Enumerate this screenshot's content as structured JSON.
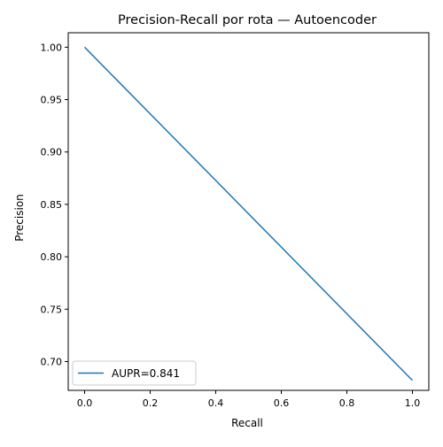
{
  "chart_data": {
    "type": "line",
    "title": "Precision-Recall por rota — Autoencoder",
    "xlabel": "Recall",
    "ylabel": "Precision",
    "xlim": [
      -0.05,
      1.05
    ],
    "ylim": [
      0.6725,
      1.0138
    ],
    "x_ticks": [
      0.0,
      0.2,
      0.4,
      0.6,
      0.8,
      1.0
    ],
    "x_tick_labels": [
      "0.0",
      "0.2",
      "0.4",
      "0.6",
      "0.8",
      "1.0"
    ],
    "y_ticks": [
      0.7,
      0.75,
      0.8,
      0.85,
      0.9,
      0.95,
      1.0
    ],
    "y_tick_labels": [
      "0.70",
      "0.75",
      "0.80",
      "0.85",
      "0.90",
      "0.95",
      "1.00"
    ],
    "grid": false,
    "legend_position": "lower-left",
    "series": [
      {
        "name": "AUPR=0.841",
        "color": "#1f77b4",
        "x": [
          0.0,
          1.0
        ],
        "y": [
          1.0,
          0.682
        ]
      }
    ]
  }
}
